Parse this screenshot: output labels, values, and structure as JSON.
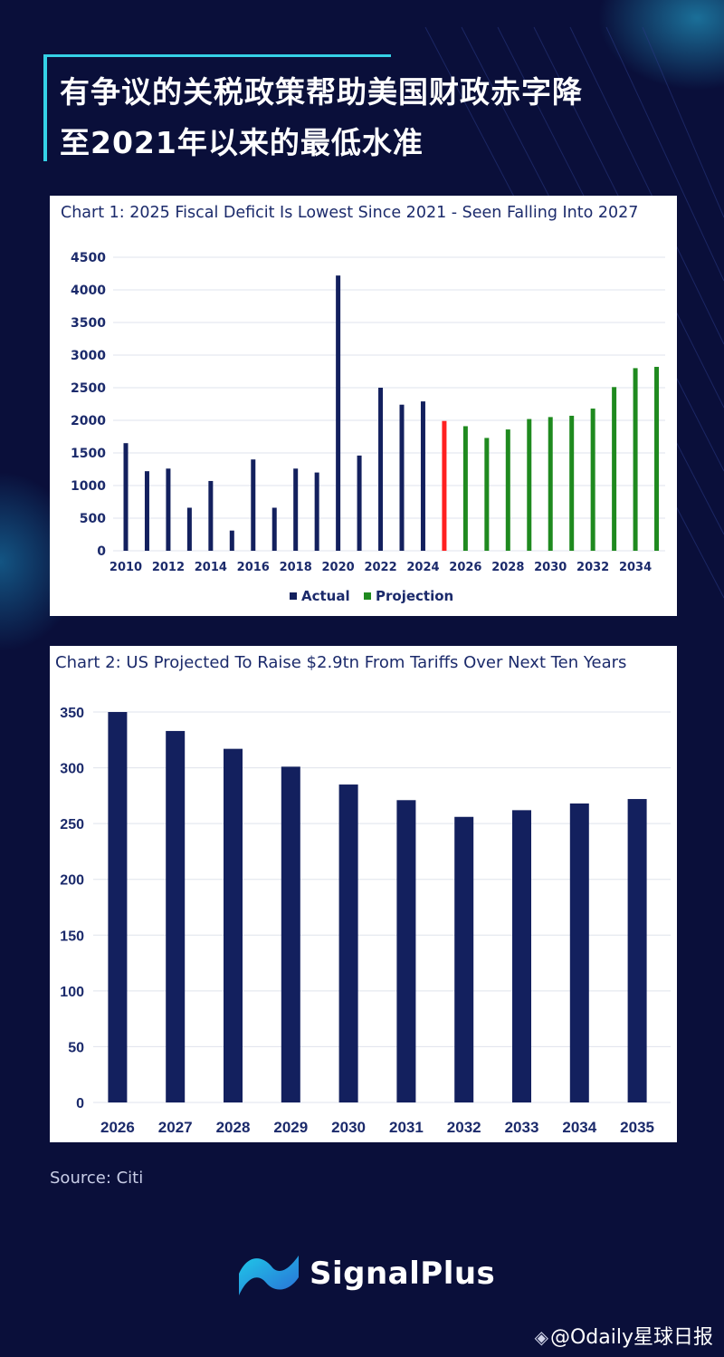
{
  "header": {
    "title_line1": "有争议的关税政策帮助美国财政赤字降",
    "title_line2": "至2021年以来的最低水准"
  },
  "colors": {
    "background": "#0a0f3a",
    "accent": "#35d1e6",
    "navy_bar": "#13205e",
    "red_bar": "#ff2020",
    "green_bar": "#1f8a1f",
    "panel_text": "#1b2a6b"
  },
  "chart_data": [
    {
      "type": "bar",
      "title": "Chart 1: 2025 Fiscal Deficit Is Lowest Since 2021 - Seen Falling Into 2027",
      "xlabel": "",
      "ylabel": "",
      "ylim": [
        0,
        4500
      ],
      "yticks": [
        0,
        500,
        1000,
        1500,
        2000,
        2500,
        3000,
        3500,
        4000,
        4500
      ],
      "x": [
        2010,
        2011,
        2012,
        2013,
        2014,
        2015,
        2016,
        2017,
        2018,
        2019,
        2020,
        2021,
        2022,
        2023,
        2024,
        2025,
        2026,
        2027,
        2028,
        2029,
        2030,
        2031,
        2032,
        2033,
        2034,
        2035
      ],
      "xtick_labels": [
        "2010",
        "2012",
        "2014",
        "2016",
        "2018",
        "2020",
        "2022",
        "2024",
        "2026",
        "2028",
        "2030",
        "2032",
        "2034"
      ],
      "values": [
        1650,
        1220,
        1260,
        660,
        1070,
        310,
        1400,
        660,
        1260,
        1200,
        4220,
        1460,
        2500,
        2240,
        2290,
        1990,
        1910,
        1730,
        1860,
        2020,
        2050,
        2070,
        2180,
        2510,
        2800,
        2820
      ],
      "bar_groups": [
        "Actual",
        "Actual",
        "Actual",
        "Actual",
        "Actual",
        "Actual",
        "Actual",
        "Actual",
        "Actual",
        "Actual",
        "Actual",
        "Actual",
        "Actual",
        "Actual",
        "Actual",
        "highlight",
        "Projection",
        "Projection",
        "Projection",
        "Projection",
        "Projection",
        "Projection",
        "Projection",
        "Projection",
        "Projection",
        "Projection"
      ],
      "legend": [
        {
          "label": "Actual",
          "color": "#13205e"
        },
        {
          "label": "Projection",
          "color": "#1f8a1f"
        }
      ],
      "legend_position": "bottom-center",
      "grid": true
    },
    {
      "type": "bar",
      "title": "Chart 2: US Projected To Raise $2.9tn From Tariffs Over Next Ten Years",
      "xlabel": "",
      "ylabel": "",
      "ylim": [
        0,
        350
      ],
      "yticks": [
        0,
        50,
        100,
        150,
        200,
        250,
        300,
        350
      ],
      "categories": [
        "2026",
        "2027",
        "2028",
        "2029",
        "2030",
        "2031",
        "2032",
        "2033",
        "2034",
        "2035"
      ],
      "values": [
        350,
        333,
        317,
        301,
        285,
        271,
        256,
        262,
        268,
        272
      ],
      "grid": true
    }
  ],
  "footer": {
    "source": "Source: Citi",
    "brand": "SignalPlus",
    "watermark": "@Odaily星球日报"
  }
}
